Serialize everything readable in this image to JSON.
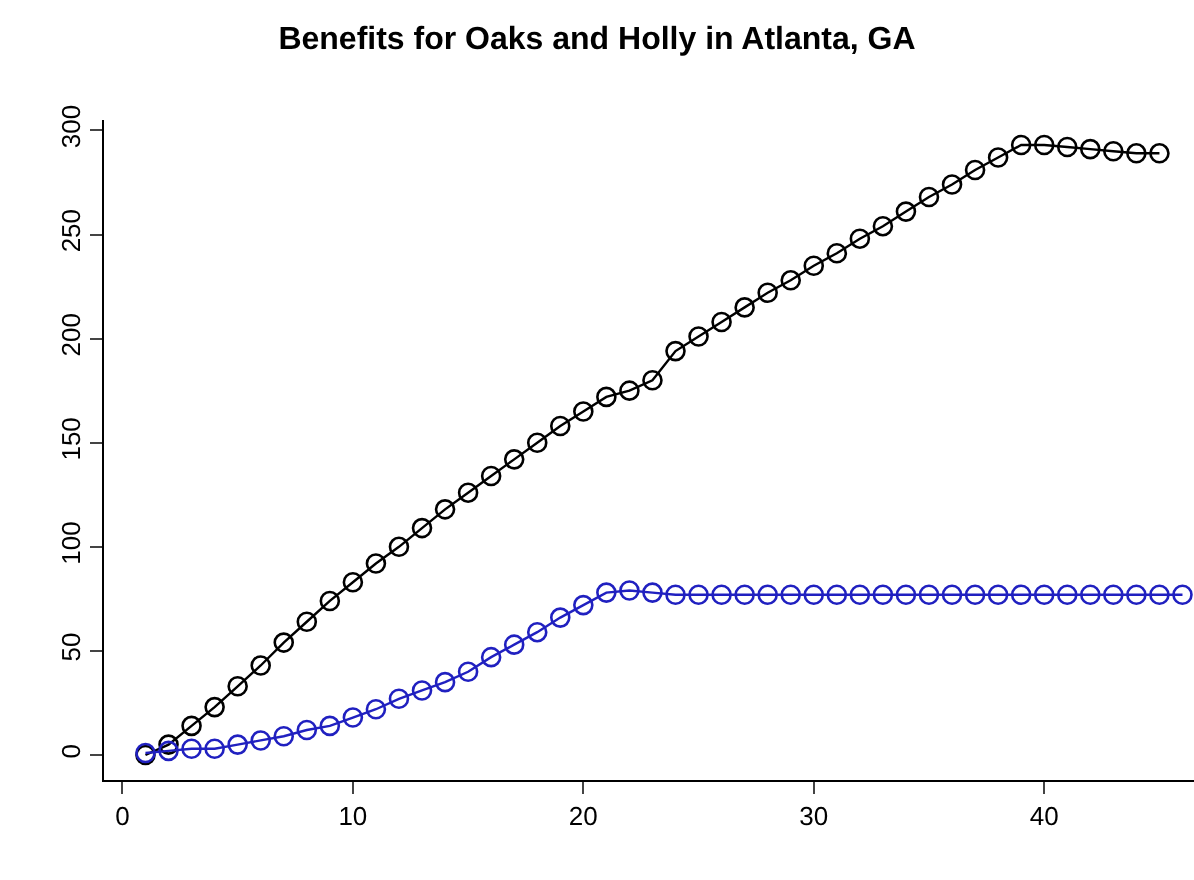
{
  "chart_data": {
    "type": "line",
    "title": "Benefits for Oaks and Holly in Atlanta, GA",
    "series": [
      {
        "color": "#000000",
        "x": [
          1,
          2,
          3,
          4,
          5,
          6,
          7,
          8,
          9,
          10,
          11,
          12,
          13,
          14,
          15,
          16,
          17,
          18,
          19,
          20,
          21,
          22,
          23,
          24,
          25,
          26,
          27,
          28,
          29,
          30,
          31,
          32,
          33,
          34,
          35,
          36,
          37,
          38,
          39,
          40,
          41,
          42,
          43,
          44,
          45
        ],
        "values": [
          0,
          5,
          14,
          23,
          33,
          43,
          54,
          64,
          74,
          83,
          92,
          100,
          109,
          118,
          126,
          134,
          142,
          150,
          158,
          165,
          172,
          175,
          180,
          194,
          201,
          208,
          215,
          222,
          228,
          235,
          241,
          248,
          254,
          261,
          268,
          274,
          281,
          287,
          293,
          293,
          292,
          291,
          290,
          289,
          289
        ]
      },
      {
        "color": "#2020c0",
        "x": [
          1,
          2,
          3,
          4,
          5,
          6,
          7,
          8,
          9,
          10,
          11,
          12,
          13,
          14,
          15,
          16,
          17,
          18,
          19,
          20,
          21,
          22,
          23,
          24,
          25,
          26,
          27,
          28,
          29,
          30,
          31,
          32,
          33,
          34,
          35,
          36,
          37,
          38,
          39,
          40,
          41,
          42,
          43,
          44,
          45,
          46
        ],
        "values": [
          1,
          2,
          3,
          3,
          5,
          7,
          9,
          12,
          14,
          18,
          22,
          27,
          31,
          35,
          40,
          47,
          53,
          59,
          66,
          72,
          78,
          79,
          78,
          77,
          77,
          77,
          77,
          77,
          77,
          77,
          77,
          77,
          77,
          77,
          77,
          77,
          77,
          77,
          77,
          77,
          77,
          77,
          77,
          77,
          77,
          77
        ]
      }
    ],
    "xlim": [
      -0.8,
      46.5
    ],
    "ylim": [
      -12,
      305
    ],
    "xticks": [
      0,
      10,
      20,
      30,
      40
    ],
    "yticks": [
      0,
      50,
      100,
      150,
      200,
      250,
      300
    ],
    "legend": false,
    "marker": "circle",
    "line_style": "solid"
  }
}
